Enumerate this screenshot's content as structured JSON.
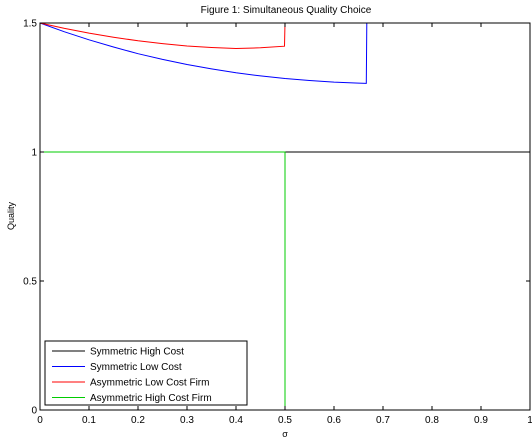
{
  "chart_data": {
    "type": "line",
    "title": "Figure 1: Simultaneous Quality Choice",
    "xlabel": "σ",
    "ylabel": "Quality",
    "xlim": [
      0,
      1
    ],
    "ylim": [
      0,
      1.5
    ],
    "x_ticks": [
      0,
      0.1,
      0.2,
      0.3,
      0.4,
      0.5,
      0.6,
      0.7,
      0.8,
      0.9,
      1
    ],
    "x_tick_labels": [
      "0",
      "0.1",
      "0.2",
      "0.3",
      "0.4",
      "0.5",
      "0.6",
      "0.7",
      "0.8",
      "0.9",
      "1"
    ],
    "y_ticks": [
      0,
      0.5,
      1,
      1.5
    ],
    "y_tick_labels": [
      "0",
      "0.5",
      "1",
      "1.5"
    ],
    "grid": false,
    "legend_position": "bottom-left",
    "series": [
      {
        "name": "Symmetric High Cost",
        "color": "#000000",
        "x": [
          0,
          0.1,
          0.2,
          0.3,
          0.4,
          0.5,
          0.6,
          0.667,
          0.7,
          0.8,
          0.9,
          1
        ],
        "y": [
          1,
          1,
          1,
          1,
          1,
          1,
          1,
          1,
          1,
          1,
          1,
          1
        ]
      },
      {
        "name": "Symmetric Low Cost",
        "color": "#0000ff",
        "x": [
          0,
          0.05,
          0.1,
          0.15,
          0.2,
          0.25,
          0.3,
          0.35,
          0.4,
          0.45,
          0.5,
          0.55,
          0.6,
          0.65,
          0.666,
          0.667,
          0.7,
          0.8,
          0.9,
          1
        ],
        "y": [
          1.5,
          1.466,
          1.435,
          1.407,
          1.381,
          1.359,
          1.339,
          1.322,
          1.307,
          1.295,
          1.285,
          1.277,
          1.271,
          1.267,
          1.266,
          1.5,
          1.5,
          1.5,
          1.5,
          1.5
        ]
      },
      {
        "name": "Asymmetric Low Cost Firm",
        "color": "#ff0000",
        "x": [
          0,
          0.05,
          0.1,
          0.15,
          0.2,
          0.25,
          0.3,
          0.35,
          0.4,
          0.45,
          0.499,
          0.5,
          0.6,
          0.7,
          0.8,
          0.9,
          1
        ],
        "y": [
          1.5,
          1.479,
          1.461,
          1.445,
          1.431,
          1.42,
          1.411,
          1.405,
          1.401,
          1.404,
          1.41,
          1.5,
          1.5,
          1.5,
          1.5,
          1.5,
          1.5
        ]
      },
      {
        "name": "Asymmetric High Cost Firm",
        "color": "#00cc00",
        "x": [
          0,
          0.1,
          0.2,
          0.3,
          0.4,
          0.5,
          0.5,
          0.6,
          0.7,
          0.8,
          0.9,
          1
        ],
        "y": [
          1,
          1,
          1,
          1,
          1,
          1,
          0,
          0,
          0,
          0,
          0,
          0
        ]
      }
    ]
  }
}
